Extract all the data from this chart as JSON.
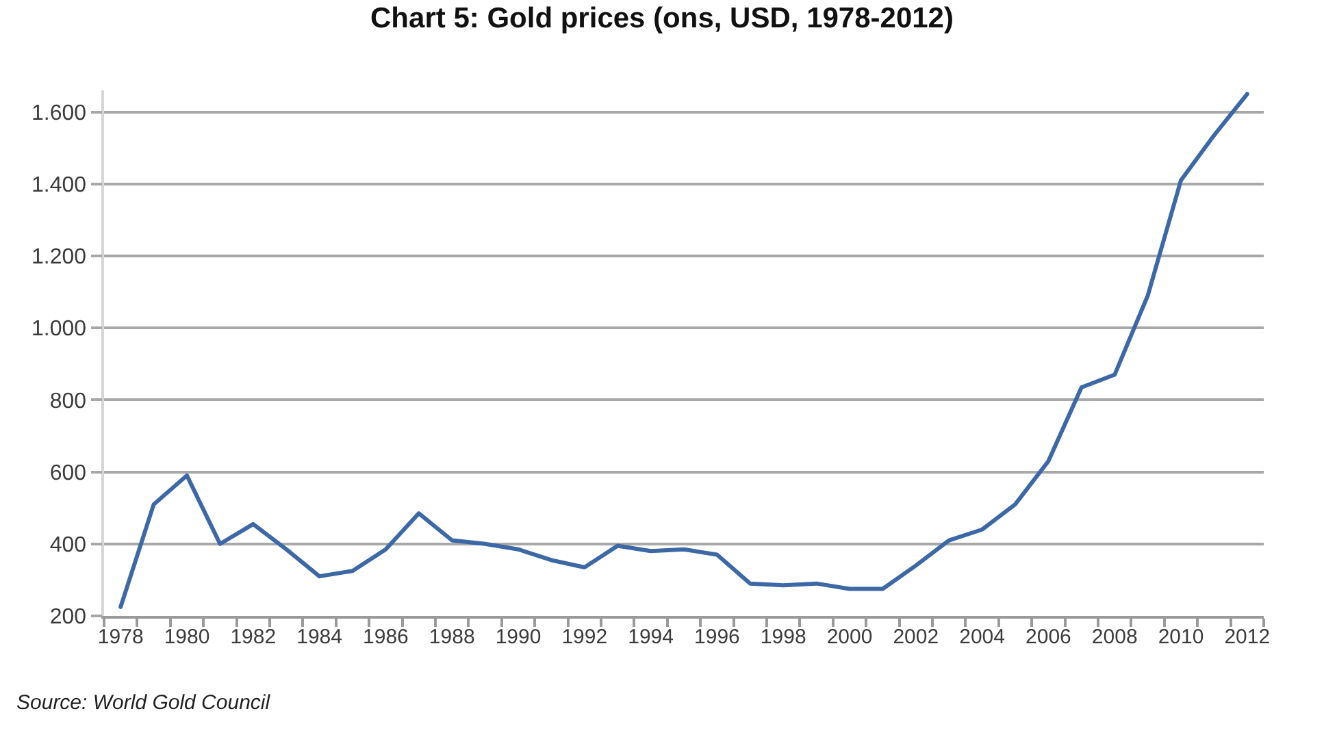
{
  "chart_data": {
    "type": "line",
    "title": "Chart 5: Gold prices (ons, USD, 1978-2012)",
    "categories": [
      "1978",
      null,
      "1980",
      null,
      "1982",
      null,
      "1984",
      null,
      "1986",
      null,
      "1988",
      null,
      "1990",
      null,
      "1992",
      null,
      "1994",
      null,
      "1996",
      null,
      "1998",
      null,
      "2000",
      null,
      "2002",
      null,
      "2004",
      null,
      "2006",
      null,
      "2008",
      null,
      "2010",
      null,
      "2012"
    ],
    "series": [
      {
        "color": "#3d68a6",
        "values": [
          225,
          510,
          590,
          400,
          455,
          385,
          310,
          325,
          385,
          485,
          410,
          400,
          385,
          355,
          335,
          395,
          380,
          385,
          370,
          290,
          285,
          290,
          275,
          275,
          340,
          410,
          440,
          510,
          630,
          835,
          870,
          1090,
          1410,
          1535,
          1650
        ]
      }
    ],
    "ylim": [
      200,
      1660
    ],
    "yticks": [
      200,
      400,
      600,
      800,
      {
        "value": 1000,
        "label": "1.000"
      },
      {
        "value": 1200,
        "label": "1.200"
      },
      {
        "value": 1400,
        "label": "1.400"
      },
      {
        "value": 1600,
        "label": "1.600"
      }
    ],
    "grid": "y",
    "line_style": "solid",
    "annotations": [
      "Source: World Gold Council"
    ]
  }
}
